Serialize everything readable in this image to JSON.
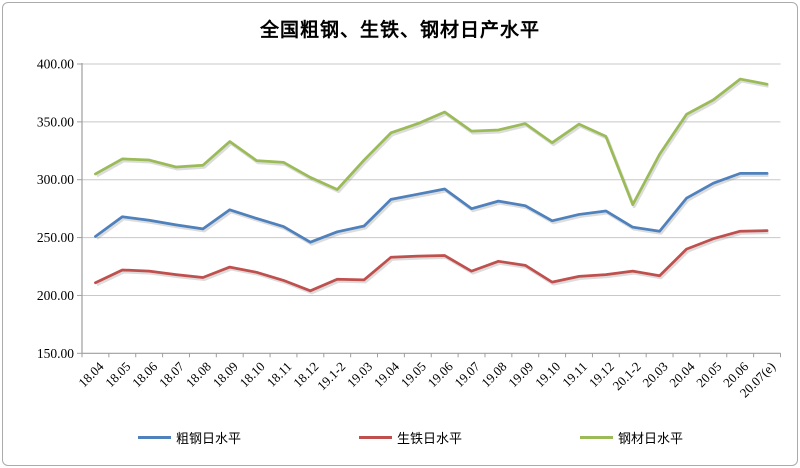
{
  "title": "全国粗钢、生铁、钢材日产水平",
  "chart_data": {
    "type": "line",
    "categories": [
      "18.04",
      "18.05",
      "18.06",
      "18.07",
      "18.08",
      "18.09",
      "18.10",
      "18.11",
      "18.12",
      "19.1-2",
      "19.03",
      "19.04",
      "19.05",
      "19.06",
      "19.07",
      "19.08",
      "19.09",
      "19.10",
      "19.11",
      "19.12",
      "20.1-2",
      "20.03",
      "20.04",
      "20.05",
      "20.06",
      "20.07(e)"
    ],
    "series": [
      {
        "name": "粗钢日水平",
        "color": "#4F81BD",
        "values": [
          251,
          268,
          265,
          261,
          257.5,
          274,
          266.5,
          259.5,
          246,
          255,
          260,
          283,
          287.5,
          292,
          275,
          281.5,
          277.5,
          264.5,
          270,
          273,
          259,
          255.5,
          284,
          297,
          305.5,
          305.5
        ]
      },
      {
        "name": "生铁日水平",
        "color": "#C0504D",
        "values": [
          211,
          222,
          221,
          218,
          215.5,
          224.5,
          220,
          213,
          204,
          214,
          213.5,
          233,
          234,
          234.5,
          221,
          229.5,
          226,
          211.5,
          216.5,
          218,
          221,
          217,
          240,
          249,
          255.5,
          256
        ]
      },
      {
        "name": "钢材日水平",
        "color": "#9BBB59",
        "values": [
          305,
          318,
          317,
          311,
          312.5,
          333,
          316.5,
          315,
          302,
          291.5,
          317,
          340.5,
          348.5,
          358.5,
          342,
          343,
          348.5,
          332,
          348,
          337.5,
          278.5,
          322,
          356.5,
          369,
          387,
          382.5
        ]
      }
    ],
    "y_axis": {
      "min": 150,
      "max": 400,
      "step": 50,
      "tick_labels": [
        "400.00",
        "350.00",
        "300.00",
        "250.00",
        "200.00",
        "150.00"
      ]
    },
    "grid": true,
    "legend_position": "bottom",
    "colors": {
      "gridline": "#c8c8c8",
      "axis": "#9e9e9e",
      "shadow": "rgba(130,130,130,0.28)",
      "text": "#000000",
      "border": "#ababab",
      "background": "#ffffff"
    }
  }
}
